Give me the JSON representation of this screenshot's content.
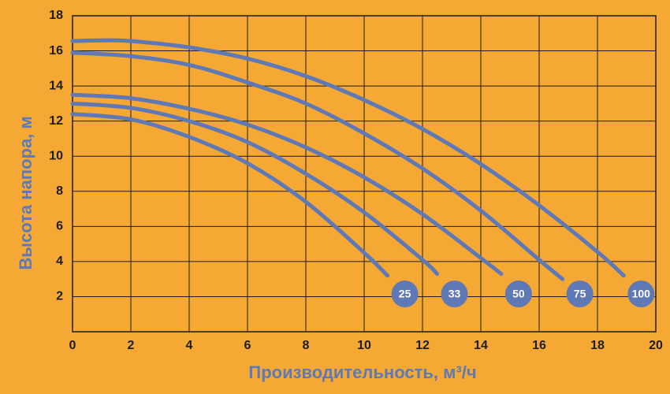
{
  "chart_data": {
    "type": "line",
    "x_label": "Производительность, м³/ч",
    "y_label": "Высота напора, м",
    "xlim": [
      0,
      20
    ],
    "xticks": [
      0,
      2,
      4,
      6,
      8,
      10,
      12,
      14,
      16,
      18,
      20
    ],
    "ylim": [
      0,
      18
    ],
    "yticks": [
      2,
      4,
      6,
      8,
      10,
      12,
      14,
      16,
      18
    ],
    "grid": true,
    "series": [
      {
        "name": "25",
        "color": "#5f79b6",
        "x": [
          0,
          2,
          4,
          6,
          8,
          10,
          10.8
        ],
        "values": [
          12.4,
          12.1,
          11.1,
          9.6,
          7.4,
          4.5,
          3.2
        ]
      },
      {
        "name": "33",
        "color": "#5f79b6",
        "x": [
          0,
          2,
          4,
          6,
          8,
          10,
          12,
          12.5
        ],
        "values": [
          13.0,
          12.75,
          12.0,
          10.8,
          9.0,
          6.8,
          4.1,
          3.3
        ]
      },
      {
        "name": "50",
        "color": "#5f79b6",
        "x": [
          0,
          2,
          4,
          6,
          8,
          10,
          12,
          14,
          14.7
        ],
        "values": [
          13.5,
          13.3,
          12.7,
          11.8,
          10.5,
          8.8,
          6.7,
          4.2,
          3.3
        ]
      },
      {
        "name": "75",
        "color": "#5f79b6",
        "x": [
          0,
          2,
          4,
          6,
          8,
          10,
          12,
          14,
          16,
          16.8
        ],
        "values": [
          15.9,
          15.7,
          15.2,
          14.2,
          13.0,
          11.3,
          9.3,
          6.9,
          4.1,
          3.0
        ]
      },
      {
        "name": "100",
        "color": "#5f79b6",
        "x": [
          0,
          1,
          2,
          4,
          6,
          8,
          10,
          12,
          14,
          16,
          18,
          18.9
        ],
        "values": [
          16.56,
          16.6,
          16.56,
          16.2,
          15.56,
          14.56,
          13.2,
          11.55,
          9.55,
          7.2,
          4.55,
          3.2
        ]
      }
    ]
  }
}
